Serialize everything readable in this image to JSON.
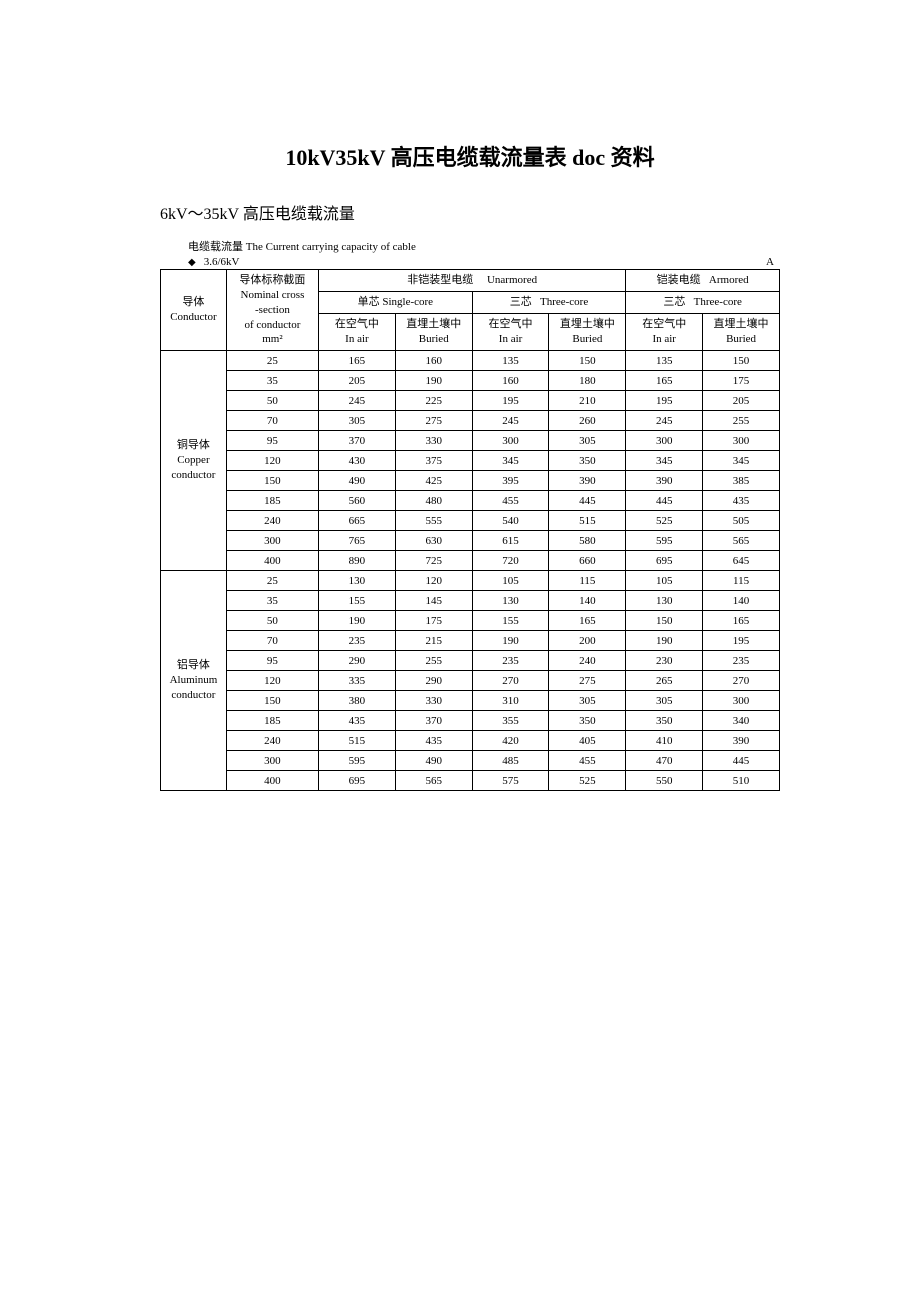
{
  "title": "10kV35kV 高压电缆载流量表 doc 资料",
  "subtitle": "6kV～35kV 高压电缆载流量",
  "caption": "电缆载流量 The Current carrying capacity of cable",
  "voltage": "3.6/6kV",
  "unit": "A",
  "headers": {
    "conductor": "导体",
    "conductor_en": "Conductor",
    "section_l1": "导体标称截面",
    "section_l2": "Nominal cross",
    "section_l3": "-section",
    "section_l4": "of conductor",
    "section_l5": "mm²",
    "unarmored": "非铠装型电缆",
    "unarmored_en": "Unarmored",
    "armored": "铠装电缆",
    "armored_en": "Armored",
    "single_core": "单芯 Single-core",
    "three_core": "三芯",
    "three_core_en": "Three-core",
    "in_air": "在空气中",
    "in_air_en": "In air",
    "buried": "直埋土壤中",
    "buried_en": "Buried"
  },
  "copper": {
    "label": "铜导体",
    "label_en1": "Copper",
    "label_en2": "conductor",
    "rows": [
      {
        "s": "25",
        "c1": "165",
        "c2": "160",
        "c3": "135",
        "c4": "150",
        "c5": "135",
        "c6": "150"
      },
      {
        "s": "35",
        "c1": "205",
        "c2": "190",
        "c3": "160",
        "c4": "180",
        "c5": "165",
        "c6": "175"
      },
      {
        "s": "50",
        "c1": "245",
        "c2": "225",
        "c3": "195",
        "c4": "210",
        "c5": "195",
        "c6": "205"
      },
      {
        "s": "70",
        "c1": "305",
        "c2": "275",
        "c3": "245",
        "c4": "260",
        "c5": "245",
        "c6": "255"
      },
      {
        "s": "95",
        "c1": "370",
        "c2": "330",
        "c3": "300",
        "c4": "305",
        "c5": "300",
        "c6": "300"
      },
      {
        "s": "120",
        "c1": "430",
        "c2": "375",
        "c3": "345",
        "c4": "350",
        "c5": "345",
        "c6": "345"
      },
      {
        "s": "150",
        "c1": "490",
        "c2": "425",
        "c3": "395",
        "c4": "390",
        "c5": "390",
        "c6": "385"
      },
      {
        "s": "185",
        "c1": "560",
        "c2": "480",
        "c3": "455",
        "c4": "445",
        "c5": "445",
        "c6": "435"
      },
      {
        "s": "240",
        "c1": "665",
        "c2": "555",
        "c3": "540",
        "c4": "515",
        "c5": "525",
        "c6": "505"
      },
      {
        "s": "300",
        "c1": "765",
        "c2": "630",
        "c3": "615",
        "c4": "580",
        "c5": "595",
        "c6": "565"
      },
      {
        "s": "400",
        "c1": "890",
        "c2": "725",
        "c3": "720",
        "c4": "660",
        "c5": "695",
        "c6": "645"
      }
    ]
  },
  "aluminum": {
    "label": "铝导体",
    "label_en1": "Aluminum",
    "label_en2": "conductor",
    "rows": [
      {
        "s": "25",
        "c1": "130",
        "c2": "120",
        "c3": "105",
        "c4": "115",
        "c5": "105",
        "c6": "115"
      },
      {
        "s": "35",
        "c1": "155",
        "c2": "145",
        "c3": "130",
        "c4": "140",
        "c5": "130",
        "c6": "140"
      },
      {
        "s": "50",
        "c1": "190",
        "c2": "175",
        "c3": "155",
        "c4": "165",
        "c5": "150",
        "c6": "165"
      },
      {
        "s": "70",
        "c1": "235",
        "c2": "215",
        "c3": "190",
        "c4": "200",
        "c5": "190",
        "c6": "195"
      },
      {
        "s": "95",
        "c1": "290",
        "c2": "255",
        "c3": "235",
        "c4": "240",
        "c5": "230",
        "c6": "235"
      },
      {
        "s": "120",
        "c1": "335",
        "c2": "290",
        "c3": "270",
        "c4": "275",
        "c5": "265",
        "c6": "270"
      },
      {
        "s": "150",
        "c1": "380",
        "c2": "330",
        "c3": "310",
        "c4": "305",
        "c5": "305",
        "c6": "300"
      },
      {
        "s": "185",
        "c1": "435",
        "c2": "370",
        "c3": "355",
        "c4": "350",
        "c5": "350",
        "c6": "340"
      },
      {
        "s": "240",
        "c1": "515",
        "c2": "435",
        "c3": "420",
        "c4": "405",
        "c5": "410",
        "c6": "390"
      },
      {
        "s": "300",
        "c1": "595",
        "c2": "490",
        "c3": "485",
        "c4": "455",
        "c5": "470",
        "c6": "445"
      },
      {
        "s": "400",
        "c1": "695",
        "c2": "565",
        "c3": "575",
        "c4": "525",
        "c5": "550",
        "c6": "510"
      }
    ]
  },
  "style": {
    "border_color": "#000000",
    "bg_color": "#ffffff",
    "text_color": "#000000",
    "title_fontsize": 22,
    "body_fontsize": 11
  }
}
